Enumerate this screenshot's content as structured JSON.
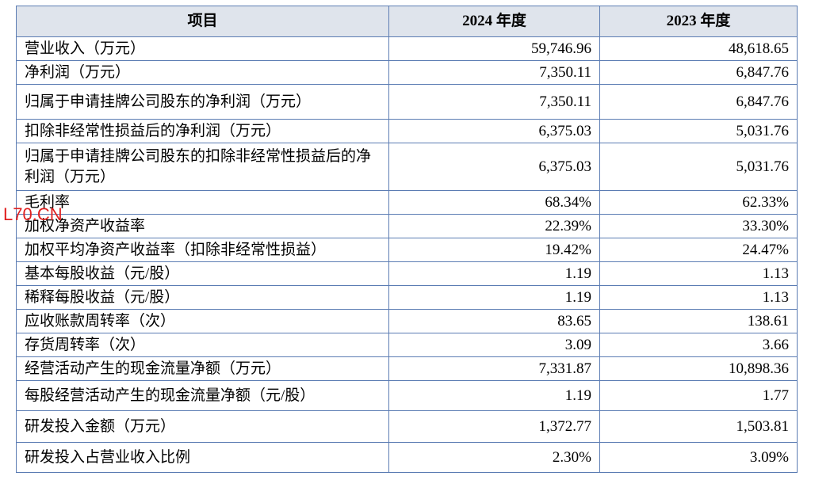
{
  "table": {
    "header": [
      "项目",
      "2024 年度",
      "2023 年度"
    ],
    "rows": [
      [
        "营业收入（万元）",
        "59,746.96",
        "48,618.65"
      ],
      [
        "净利润（万元）",
        "7,350.11",
        "6,847.76"
      ],
      [
        "归属于申请挂牌公司股东的净利润（万元）",
        "7,350.11",
        "6,847.76"
      ],
      [
        "扣除非经常性损益后的净利润（万元）",
        "6,375.03",
        "5,031.76"
      ],
      [
        "归属于申请挂牌公司股东的扣除非经常性损益后的净利润（万元）",
        "6,375.03",
        "5,031.76"
      ],
      [
        "毛利率",
        "68.34%",
        "62.33%"
      ],
      [
        "加权净资产收益率",
        "22.39%",
        "33.30%"
      ],
      [
        "加权平均净资产收益率（扣除非经常性损益）",
        "19.42%",
        "24.47%"
      ],
      [
        "基本每股收益（元/股）",
        "1.19",
        "1.13"
      ],
      [
        "稀释每股收益（元/股）",
        "1.19",
        "1.13"
      ],
      [
        "应收账款周转率（次）",
        "83.65",
        "138.61"
      ],
      [
        "存货周转率（次）",
        "3.09",
        "3.66"
      ],
      [
        "经营活动产生的现金流量净额（万元）",
        "7,331.87",
        "10,898.36"
      ],
      [
        "每股经营活动产生的现金流量净额（元/股）",
        "1.19",
        "1.77"
      ],
      [
        "研发投入金额（万元）",
        "1,372.77",
        "1,503.81"
      ],
      [
        "研发投入占营业收入比例",
        "2.30%",
        "3.09%"
      ]
    ]
  },
  "watermark": "L70.CN"
}
